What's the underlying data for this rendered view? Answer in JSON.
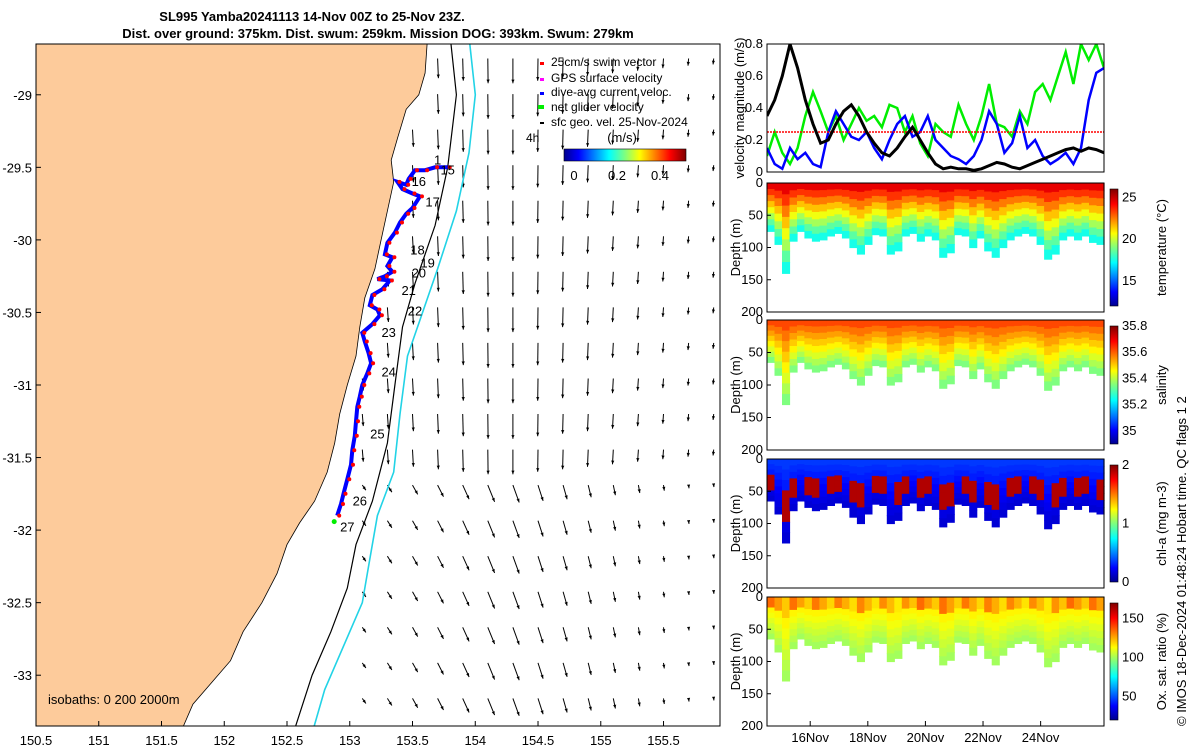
{
  "title": {
    "line1": "SL995 Yamba20241113 14-Nov 00Z to 25-Nov 23Z.",
    "line2": "Dist. over ground: 375km. Dist. swum: 259km. Mission DOG: 393km. Swum: 279km"
  },
  "colors": {
    "land": "#FDCB9B",
    "track_red": "#ff0000",
    "track_blue": "#0000ff",
    "isobath_cyan": "#22d3e6",
    "net_green": "#00ee00"
  },
  "chart_data": [
    {
      "type": "scatter",
      "name": "map",
      "xlim": [
        150.5,
        155.95
      ],
      "ylim": [
        -33.35,
        -28.65
      ],
      "xticks": [
        "150.5",
        "151",
        "151.5",
        "152",
        "152.5",
        "153",
        "153.5",
        "154",
        "154.5",
        "155",
        "155.5"
      ],
      "yticks": [
        "-29",
        "-29.5",
        "-30",
        "-30.5",
        "-31",
        "-31.5",
        "-32",
        "-32.5",
        "-33"
      ],
      "isobaths_label": "isobaths: 0   200   2000m",
      "legend": [
        {
          "label": "25cm/s swim vector",
          "color": "#ff0000"
        },
        {
          "label": "GPS surface velocity",
          "color": "#ff00ff"
        },
        {
          "label": "dive-avg current veloc.",
          "color": "#0000ff"
        },
        {
          "label": "net glider velocity",
          "color": "#00ee00"
        },
        {
          "label": "sfc geo. vel. 25-Nov-2024",
          "color": "#000000"
        }
      ],
      "legend_extra": "4h",
      "colorbar": {
        "label": "(m/s)",
        "ticks": [
          "0",
          "0.2",
          "0.4"
        ],
        "range": [
          0,
          0.5
        ]
      },
      "track": [
        [
          153.78,
          -29.5
        ],
        [
          153.68,
          -29.5
        ],
        [
          153.6,
          -29.52
        ],
        [
          153.52,
          -29.52
        ],
        [
          153.47,
          -29.58
        ],
        [
          153.45,
          -29.62
        ],
        [
          153.38,
          -29.6
        ],
        [
          153.42,
          -29.65
        ],
        [
          153.5,
          -29.68
        ],
        [
          153.56,
          -29.7
        ],
        [
          153.5,
          -29.78
        ],
        [
          153.45,
          -29.82
        ],
        [
          153.4,
          -29.88
        ],
        [
          153.36,
          -29.95
        ],
        [
          153.3,
          -30.02
        ],
        [
          153.28,
          -30.1
        ],
        [
          153.34,
          -30.12
        ],
        [
          153.3,
          -30.18
        ],
        [
          153.34,
          -30.22
        ],
        [
          153.28,
          -30.25
        ],
        [
          153.22,
          -30.27
        ],
        [
          153.32,
          -30.28
        ],
        [
          153.26,
          -30.34
        ],
        [
          153.18,
          -30.38
        ],
        [
          153.16,
          -30.45
        ],
        [
          153.22,
          -30.48
        ],
        [
          153.24,
          -30.52
        ],
        [
          153.18,
          -30.58
        ],
        [
          153.1,
          -30.64
        ],
        [
          153.12,
          -30.7
        ],
        [
          153.15,
          -30.78
        ],
        [
          153.17,
          -30.85
        ],
        [
          153.14,
          -30.92
        ],
        [
          153.1,
          -31.0
        ],
        [
          153.08,
          -31.08
        ],
        [
          153.06,
          -31.15
        ],
        [
          153.05,
          -31.25
        ],
        [
          153.04,
          -31.35
        ],
        [
          153.02,
          -31.45
        ],
        [
          153.01,
          -31.55
        ],
        [
          152.98,
          -31.65
        ],
        [
          152.95,
          -31.75
        ],
        [
          152.93,
          -31.82
        ],
        [
          152.9,
          -31.9
        ]
      ],
      "track_labels": [
        {
          "text": "15",
          "lon": 153.78,
          "lat": -29.55
        },
        {
          "text": "16",
          "lon": 153.55,
          "lat": -29.63
        },
        {
          "text": "17",
          "lon": 153.66,
          "lat": -29.77
        },
        {
          "text": "18",
          "lon": 153.54,
          "lat": -30.1
        },
        {
          "text": "19",
          "lon": 153.62,
          "lat": -30.19
        },
        {
          "text": "20",
          "lon": 153.55,
          "lat": -30.26
        },
        {
          "text": "21",
          "lon": 153.47,
          "lat": -30.38
        },
        {
          "text": "22",
          "lon": 153.52,
          "lat": -30.52
        },
        {
          "text": "23",
          "lon": 153.31,
          "lat": -30.67
        },
        {
          "text": "24",
          "lon": 153.31,
          "lat": -30.94
        },
        {
          "text": "25",
          "lon": 153.22,
          "lat": -31.37
        },
        {
          "text": "26",
          "lon": 153.08,
          "lat": -31.83
        },
        {
          "text": "27",
          "lon": 152.98,
          "lat": -32.01
        },
        {
          "text": "1",
          "lon": 153.7,
          "lat": -29.48
        }
      ]
    },
    {
      "type": "line",
      "name": "velocity",
      "ylabel": "velocity magnitude (m/s)",
      "ylim": [
        0,
        0.8
      ],
      "yticks": [
        "0",
        "0.2",
        "0.4",
        "0.6",
        "0.8"
      ],
      "series": [
        {
          "name": "net glider velocity",
          "color": "#00ee00",
          "values": [
            0.1,
            0.25,
            0.12,
            0.05,
            0.15,
            0.35,
            0.5,
            0.38,
            0.25,
            0.35,
            0.2,
            0.3,
            0.4,
            0.32,
            0.35,
            0.28,
            0.42,
            0.4,
            0.25,
            0.35,
            0.18,
            0.1,
            0.3,
            0.25,
            0.22,
            0.42,
            0.3,
            0.2,
            0.35,
            0.55,
            0.3,
            0.28,
            0.22,
            0.38,
            0.3,
            0.5,
            0.55,
            0.45,
            0.6,
            0.75,
            0.55,
            0.8,
            0.7,
            0.8,
            0.65
          ]
        },
        {
          "name": "dive-avg current veloc.",
          "color": "#0000ff",
          "values": [
            0.15,
            0.05,
            0.02,
            0.15,
            0.08,
            0.12,
            0.05,
            0.03,
            0.25,
            0.38,
            0.3,
            0.22,
            0.2,
            0.25,
            0.15,
            0.08,
            0.2,
            0.3,
            0.35,
            0.22,
            0.25,
            0.35,
            0.2,
            0.15,
            0.1,
            0.08,
            0.05,
            0.1,
            0.2,
            0.38,
            0.3,
            0.12,
            0.18,
            0.35,
            0.15,
            0.2,
            0.1,
            0.05,
            0.08,
            0.12,
            0.05,
            0.15,
            0.45,
            0.62,
            0.65
          ]
        },
        {
          "name": "25cm/s swim vector",
          "color": "#ff0000",
          "values": [
            0.25,
            0.25,
            0.25,
            0.25,
            0.25,
            0.25,
            0.25,
            0.25,
            0.25,
            0.25,
            0.25,
            0.25,
            0.25,
            0.25,
            0.25,
            0.25,
            0.25,
            0.25,
            0.25,
            0.25,
            0.25,
            0.25,
            0.25,
            0.25,
            0.25,
            0.25,
            0.25,
            0.25,
            0.25,
            0.25,
            0.25,
            0.25,
            0.25,
            0.25,
            0.25,
            0.25,
            0.25,
            0.25,
            0.25,
            0.25,
            0.25,
            0.25,
            0.25,
            0.25,
            0.25
          ]
        },
        {
          "name": "sfc geo. vel.",
          "color": "#000000",
          "values": [
            0.35,
            0.45,
            0.6,
            0.8,
            0.65,
            0.45,
            0.3,
            0.18,
            0.2,
            0.3,
            0.38,
            0.42,
            0.35,
            0.25,
            0.18,
            0.12,
            0.1,
            0.15,
            0.22,
            0.28,
            0.2,
            0.12,
            0.05,
            0.02,
            0.03,
            0.02,
            0.02,
            0.01,
            0.02,
            0.04,
            0.06,
            0.05,
            0.03,
            0.02,
            0.04,
            0.06,
            0.08,
            0.1,
            0.12,
            0.14,
            0.15,
            0.13,
            0.15,
            0.14,
            0.12
          ]
        }
      ]
    },
    {
      "type": "heatmap",
      "name": "temperature",
      "ylabel": "Depth (m)",
      "clabel": "temperature (°C)",
      "ylim": [
        0,
        200
      ],
      "yticks": [
        "0",
        "50",
        "100",
        "150",
        "200"
      ],
      "cticks": [
        "15",
        "20",
        "25"
      ],
      "crange": [
        12,
        26
      ],
      "surface": 24.5,
      "deep": 17.5
    },
    {
      "type": "heatmap",
      "name": "salinity",
      "ylabel": "Depth (m)",
      "clabel": "salinity",
      "ylim": [
        0,
        200
      ],
      "yticks": [
        "0",
        "50",
        "100",
        "150",
        "200"
      ],
      "cticks": [
        "35",
        "35.2",
        "35.4",
        "35.6",
        "35.8"
      ],
      "crange": [
        34.9,
        35.8
      ],
      "surface": 35.62,
      "deep": 35.35
    },
    {
      "type": "heatmap",
      "name": "chl-a",
      "ylabel": "Depth (m)",
      "clabel": "chl-a (mg m-3)",
      "ylim": [
        0,
        200
      ],
      "yticks": [
        "0",
        "50",
        "100",
        "150",
        "200"
      ],
      "cticks": [
        "0",
        "1",
        "2"
      ],
      "crange": [
        0,
        2
      ],
      "surface": 0.35,
      "deep": 0.15
    },
    {
      "type": "heatmap",
      "name": "oxygen",
      "ylabel": "Depth (m)",
      "clabel": "Ox. sat. ratio (%)",
      "ylim": [
        0,
        200
      ],
      "yticks": [
        "0",
        "50",
        "100",
        "150",
        "200"
      ],
      "cticks": [
        "50",
        "100",
        "150"
      ],
      "crange": [
        20,
        170
      ],
      "surface": 120,
      "deep": 100
    }
  ],
  "time_axis": {
    "ticks": [
      "16Nov",
      "18Nov",
      "20Nov",
      "22Nov",
      "24Nov"
    ],
    "start_day": 14.5,
    "end_day": 26.2
  },
  "mixed_layer_bottom": [
    65,
    85,
    130,
    80,
    65,
    75,
    80,
    78,
    72,
    68,
    75,
    90,
    100,
    85,
    70,
    72,
    100,
    95,
    72,
    68,
    80,
    72,
    78,
    105,
    98,
    70,
    72,
    90,
    75,
    95,
    105,
    90,
    78,
    72,
    68,
    72,
    85,
    108,
    100,
    78,
    72,
    78,
    72,
    82,
    85
  ],
  "credit": "© IMOS 18-Dec-2024 01:48:24 Hobart time. QC flags 1  2"
}
